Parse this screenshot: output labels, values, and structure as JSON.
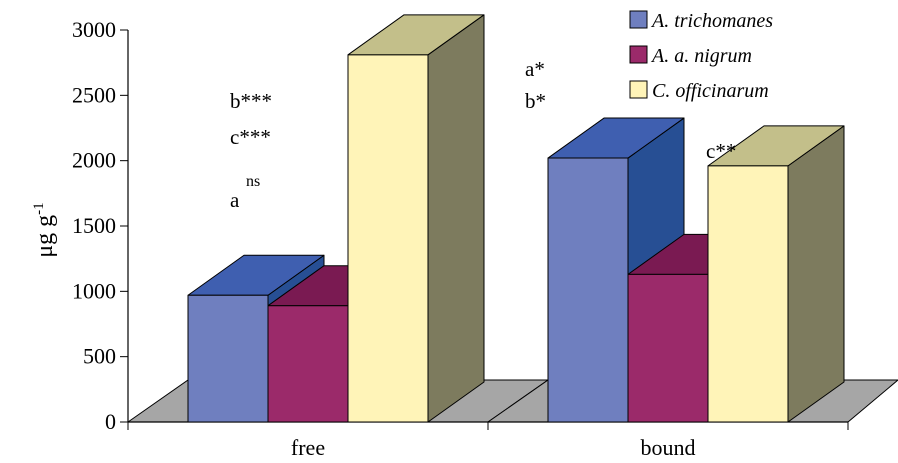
{
  "chart_data": {
    "type": "bar",
    "categories": [
      "free",
      "bound"
    ],
    "series": [
      {
        "name": "A. trichomanes",
        "values": [
          970,
          2020
        ],
        "color": "#6f7fbf",
        "top_color": "#3f5fb0",
        "side_color": "#274f94"
      },
      {
        "name": "A. a. nigrum",
        "values": [
          890,
          1130
        ],
        "color": "#9b2a6a",
        "top_color": "#7a1a52",
        "side_color": "#7a1a52"
      },
      {
        "name": "C. officinarum",
        "values": [
          2810,
          1960
        ],
        "color": "#fff4b8",
        "top_color": "#c3bf8a",
        "side_color": "#7d7b5e"
      }
    ],
    "ylabel": "μg g",
    "ylabel_sup": "-1",
    "ylim": [
      0,
      3000
    ],
    "yticks": [
      "0",
      "500",
      "1000",
      "1500",
      "2000",
      "2500",
      "3000"
    ],
    "floor_color": "#a6a6a6",
    "legend_position": "top-right",
    "annotations": {
      "free": [
        {
          "text": "b***",
          "sup": ""
        },
        {
          "text": "c***",
          "sup": ""
        },
        {
          "text": "a",
          "sup": "ns"
        }
      ],
      "bound": [
        {
          "text": "a*",
          "sup": ""
        },
        {
          "text": "b*",
          "sup": ""
        },
        {
          "text": "c**",
          "sup": ""
        }
      ]
    }
  }
}
